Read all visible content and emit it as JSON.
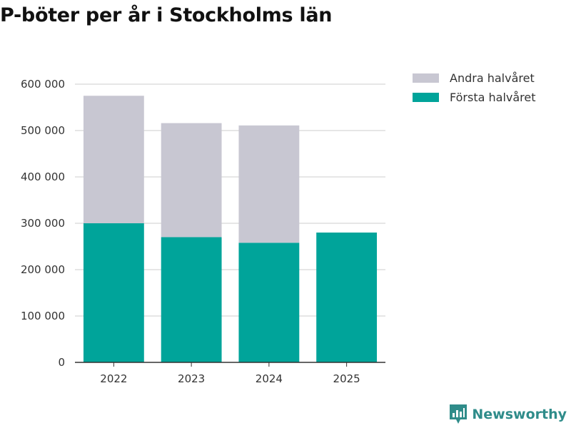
{
  "colors": {
    "forsta": "#00a49a",
    "andra": "#c8c7d2",
    "grid": "#dddddd",
    "axis": "#333333",
    "brand": "#2f8c8a"
  },
  "legend": {
    "items": [
      {
        "label": "Andra halvåret",
        "color": "#c8c7d2"
      },
      {
        "label": "Första halvåret",
        "color": "#00a49a"
      }
    ]
  },
  "branding": {
    "name": "Newsworthy",
    "icon": "newsworthy-logo-icon"
  },
  "chart_data": {
    "type": "bar",
    "stacked": true,
    "title": "P-böter per år i Stockholms län",
    "xlabel": "",
    "ylabel": "",
    "categories": [
      "2022",
      "2023",
      "2024",
      "2025"
    ],
    "series": [
      {
        "name": "Första halvåret",
        "values": [
          300000,
          270000,
          258000,
          280000
        ]
      },
      {
        "name": "Andra halvåret",
        "values": [
          275000,
          246000,
          253000,
          0
        ]
      }
    ],
    "ylim": [
      0,
      600000
    ],
    "yticks": [
      0,
      100000,
      200000,
      300000,
      400000,
      500000,
      600000
    ],
    "ytick_labels": [
      "0",
      "100 000",
      "200 000",
      "300 000",
      "400 000",
      "500 000",
      "600 000"
    ],
    "grid": true,
    "legend_position": "top-right"
  }
}
